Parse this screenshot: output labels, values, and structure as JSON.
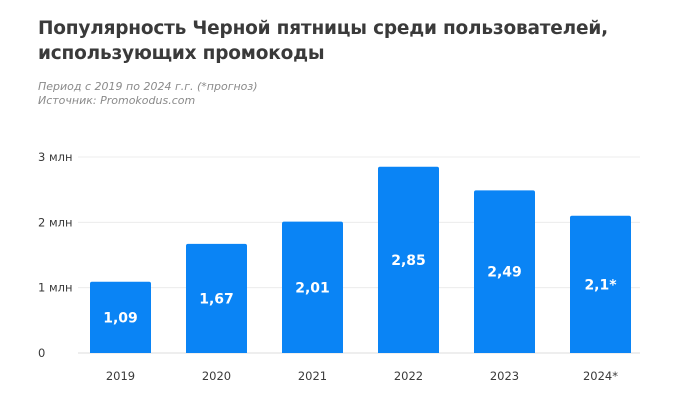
{
  "header": {
    "title_line1": "Популярность Черной пятницы среди пользователей,",
    "title_line2": "использующих промокоды",
    "period": "Период с 2019 по 2024 г.г. (*прогноз)",
    "source": "Источник: Promokodus.com"
  },
  "chart_data": {
    "type": "bar",
    "title": "Популярность Черной пятницы среди пользователей, использующих промокоды",
    "categories": [
      "2019",
      "2020",
      "2021",
      "2022",
      "2023",
      "2024*"
    ],
    "values": [
      1.09,
      1.67,
      2.01,
      2.85,
      2.49,
      2.1
    ],
    "value_labels": [
      "1,09",
      "1,67",
      "2,01",
      "2,85",
      "2,49",
      "2,1*"
    ],
    "y_ticks": [
      0,
      1,
      2,
      3
    ],
    "y_tick_labels": [
      "0",
      "1 млн",
      "2 млн",
      "3 млн"
    ],
    "ylim": [
      0,
      3
    ],
    "xlabel": "",
    "ylabel": "",
    "grid": true,
    "bar_color": "#0a84f5"
  }
}
